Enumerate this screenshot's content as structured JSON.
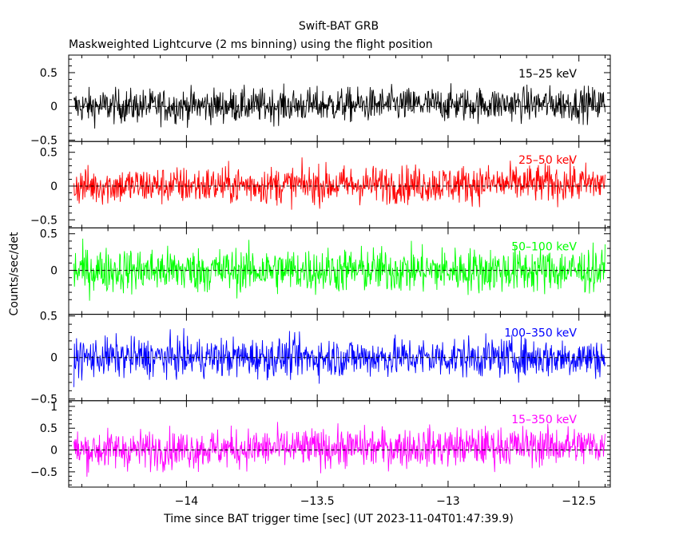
{
  "chart_data": {
    "type": "line",
    "title": "Swift-BAT GRB",
    "subtitle": "Maskweighted Lightcurve (2 ms binning) using the flight position",
    "xlabel": "Time since BAT trigger time [sec] (UT 2023-11-04T01:47:39.9)",
    "ylabel": "Counts/sec/det",
    "xlim": [
      -14.45,
      -12.38
    ],
    "x_ticks": [
      {
        "value": -14,
        "label": "−14"
      },
      {
        "value": -13.5,
        "label": "−13.5"
      },
      {
        "value": -13,
        "label": "−13"
      },
      {
        "value": -12.5,
        "label": "−12.5"
      }
    ],
    "x_range_data": [
      -14.43,
      -12.4
    ],
    "grid": false,
    "zero_line": "dashed",
    "series": [
      {
        "name": "15–25 keV",
        "color": "#000000",
        "amplitude": 0.18,
        "trend": 0.04,
        "ylim": [
          -0.52,
          0.76
        ],
        "yticks": [
          {
            "value": -0.5,
            "label": "−0.5"
          },
          {
            "value": 0,
            "label": "0"
          },
          {
            "value": 0.5,
            "label": "0.5"
          }
        ]
      },
      {
        "name": "25–50 keV",
        "color": "#ff0000",
        "amplitude": 0.2,
        "trend": 0.04,
        "ylim": [
          -0.62,
          0.66
        ],
        "yticks": [
          {
            "value": -0.5,
            "label": "−0.5"
          },
          {
            "value": 0,
            "label": "0"
          },
          {
            "value": 0.5,
            "label": "0.5"
          }
        ]
      },
      {
        "name": "50–100 keV",
        "color": "#00ff00",
        "amplitude": 0.22,
        "trend": 0.0,
        "ylim": [
          -0.6,
          0.58
        ],
        "yticks": [
          {
            "value": 0,
            "label": "0"
          },
          {
            "value": 0.5,
            "label": "0.5"
          }
        ]
      },
      {
        "name": "100–350 keV",
        "color": "#0000ff",
        "amplitude": 0.17,
        "trend": 0.0,
        "ylim": [
          -0.52,
          0.52
        ],
        "yticks": [
          {
            "value": -0.5,
            "label": "−0.5"
          },
          {
            "value": 0,
            "label": "0"
          },
          {
            "value": 0.5,
            "label": "0.5"
          }
        ]
      },
      {
        "name": "15–350 keV",
        "color": "#ff00ff",
        "amplitude": 0.32,
        "trend": 0.1,
        "ylim": [
          -0.85,
          1.13
        ],
        "yticks": [
          {
            "value": -0.5,
            "label": "−0.5"
          },
          {
            "value": 0,
            "label": "0"
          },
          {
            "value": 0.5,
            "label": "0.5"
          },
          {
            "value": 1,
            "label": "1"
          }
        ]
      }
    ]
  }
}
